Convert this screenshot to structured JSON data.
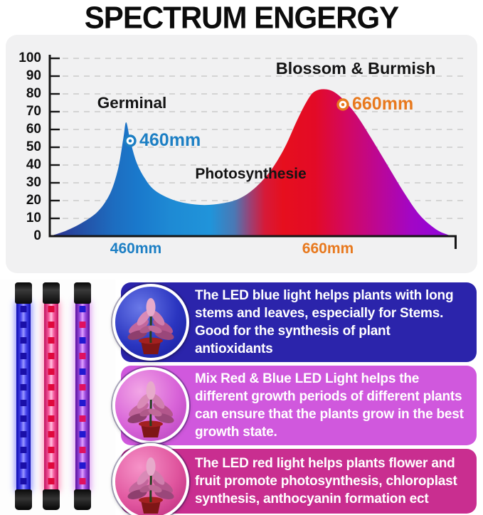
{
  "title": "SPECTRUM ENGERGY",
  "chart_data": {
    "type": "area",
    "title": "SPECTRUM ENGERGY",
    "ylim": [
      0,
      100
    ],
    "yticks": [
      100,
      90,
      80,
      70,
      60,
      50,
      40,
      30,
      20,
      10,
      0
    ],
    "grid": "dashed horizontal",
    "annotations": {
      "germinal": "Germinal",
      "blossom": "Blossom & Burmish",
      "photosynthesis": "Photosynthesie",
      "peak_blue_label": "460mm",
      "peak_red_label": "660mm",
      "x_label_blue": "460mm",
      "x_label_red": "660mm",
      "peak_blue_color": "#1d7fc4",
      "peak_red_color": "#e8791e"
    },
    "peaks": [
      {
        "name": "Germinal",
        "wavelength": "460mm",
        "value": 64
      },
      {
        "name": "Blossom & Burmish",
        "wavelength": "660mm",
        "value": 82
      }
    ],
    "dip_value": 17.5,
    "curve_points": [
      [
        0,
        0
      ],
      [
        0.04,
        3
      ],
      [
        0.08,
        7.5
      ],
      [
        0.12,
        14
      ],
      [
        0.15,
        24
      ],
      [
        0.17,
        38
      ],
      [
        0.183,
        55
      ],
      [
        0.19,
        64
      ],
      [
        0.2,
        54
      ],
      [
        0.215,
        42
      ],
      [
        0.235,
        33
      ],
      [
        0.26,
        26
      ],
      [
        0.3,
        21
      ],
      [
        0.34,
        18.5
      ],
      [
        0.385,
        17.5
      ],
      [
        0.43,
        18.5
      ],
      [
        0.47,
        21
      ],
      [
        0.51,
        27
      ],
      [
        0.55,
        37
      ],
      [
        0.585,
        50
      ],
      [
        0.615,
        65
      ],
      [
        0.64,
        76
      ],
      [
        0.66,
        81.5
      ],
      [
        0.69,
        82.5
      ],
      [
        0.72,
        79
      ],
      [
        0.76,
        69
      ],
      [
        0.8,
        55
      ],
      [
        0.84,
        40
      ],
      [
        0.88,
        25
      ],
      [
        0.92,
        12
      ],
      [
        0.96,
        4
      ],
      [
        0.99,
        0.8
      ],
      [
        1,
        0.3
      ]
    ],
    "fill_gradient": [
      [
        0.0,
        "#2c2f90"
      ],
      [
        0.08,
        "#2450a6"
      ],
      [
        0.16,
        "#1d6dc0"
      ],
      [
        0.22,
        "#1a79cc"
      ],
      [
        0.3,
        "#1e8ad4"
      ],
      [
        0.4,
        "#2094da"
      ],
      [
        0.46,
        "#4b78b4"
      ],
      [
        0.5,
        "#9e3f72"
      ],
      [
        0.535,
        "#d61a38"
      ],
      [
        0.58,
        "#e60f1e"
      ],
      [
        0.66,
        "#e30a26"
      ],
      [
        0.74,
        "#d20862"
      ],
      [
        0.82,
        "#bb0796"
      ],
      [
        0.9,
        "#a206c6"
      ],
      [
        1.0,
        "#8d06dd"
      ]
    ]
  },
  "tubes": [
    {
      "name": "blue-led-tube",
      "edge": "#0d0bb0",
      "side": "#4a47ee",
      "mid": "#9a97ff",
      "chipA": "#1a0fa8",
      "chipB": "#1a0fa8",
      "glow": "rgba(50,50,255,0.55)"
    },
    {
      "name": "red-led-tube",
      "edge": "#c0125e",
      "side": "#f55a9e",
      "mid": "#ffc2e0",
      "chipA": "#e0083c",
      "chipB": "#e0083c",
      "glow": "rgba(255,50,130,0.5)"
    },
    {
      "name": "mixed-led-tube",
      "edge": "#5a10a0",
      "side": "#a050e0",
      "mid": "#e0a0ff",
      "chipA": "#2218d0",
      "chipB": "#e01060",
      "glow": "rgba(190,60,230,0.5)"
    }
  ],
  "info_cards": [
    {
      "bg": "#2b24ab",
      "circle": {
        "inner": "#6a79e8",
        "mid": "#2a35c0",
        "outer": "#141a96"
      },
      "text": "The LED blue light helps plants with long stems and leaves, especially for Stems. Good for the synthesis of plant antioxidants"
    },
    {
      "bg": "#d058dd",
      "circle": {
        "inner": "#f2a6e6",
        "mid": "#d863d8",
        "outer": "#b03cb8"
      },
      "text": "Mix Red & Blue LED Light helps the different growth periods of different plants can ensure that the plants grow in the best growth state."
    },
    {
      "bg": "#c92e90",
      "circle": {
        "inner": "#f693c8",
        "mid": "#e0559e",
        "outer": "#b52478"
      },
      "text": "The LED red light helps plants flower and fruit promote photosynthesis, chloroplast synthesis, anthocyanin formation ect"
    }
  ]
}
